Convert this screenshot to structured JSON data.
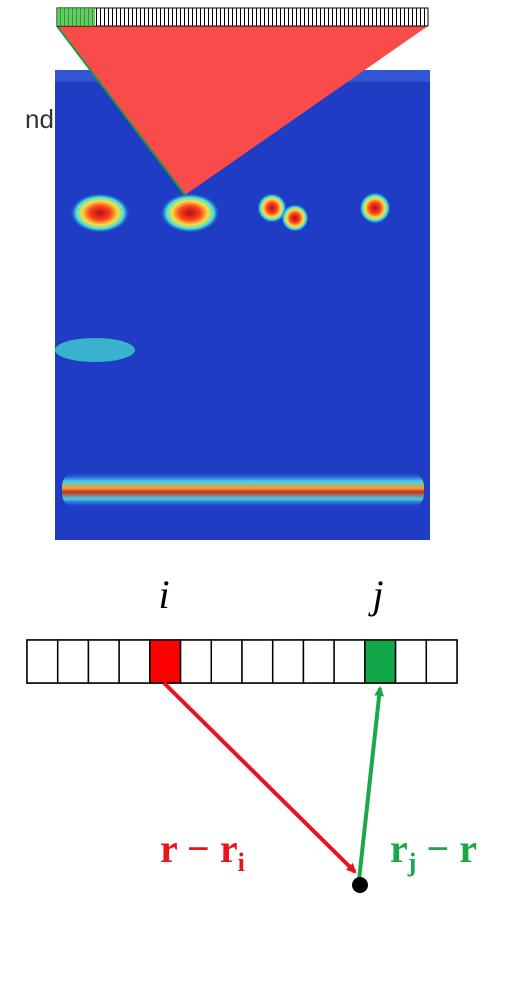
{
  "side_text": "nd",
  "element_labels": [
    "i",
    "j"
  ],
  "vectors": [
    {
      "lead": "r − r",
      "sub": "i",
      "tail": ""
    },
    {
      "lead": "r",
      "sub": "j",
      "tail": " − r"
    }
  ]
}
